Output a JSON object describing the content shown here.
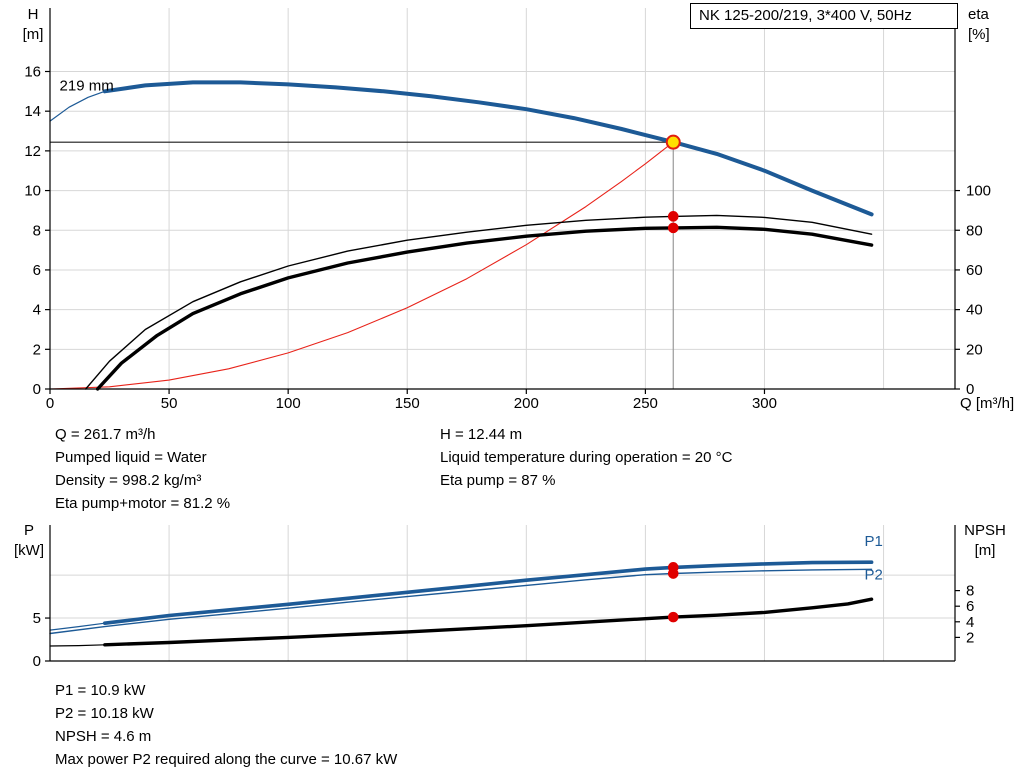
{
  "title_box": {
    "text": "NK 125-200/219, 3*400 V, 50Hz"
  },
  "annotations_top": {
    "col1": [
      "Q = 261.7 m³/h",
      "Pumped liquid = Water",
      "Density = 998.2 kg/m³",
      "Eta pump+motor = 81.2 %"
    ],
    "col2": [
      "H = 12.44 m",
      "Liquid temperature during operation = 20 °C",
      "Eta pump = 87 %"
    ]
  },
  "annotations_bottom": [
    "P1 = 10.9 kW",
    "P2 = 10.18 kW",
    "NPSH = 4.6 m",
    "Max power P2 required along the curve = 10.67 kW"
  ],
  "colors": {
    "curve_blue": "#1d5a96",
    "curve_black": "#000000",
    "system_red": "#e8231a",
    "marker_red": "#e00000",
    "duty_yellow": "#ffdf00",
    "grid": "#d7d7d7",
    "axis": "#000000"
  },
  "chart_data": [
    {
      "type": "line",
      "name": "head-efficiency-chart",
      "x_axis": {
        "label": "Q [m³/h]",
        "range": [
          0,
          380
        ],
        "ticks": [
          0,
          50,
          100,
          150,
          200,
          250,
          300
        ],
        "grid_ticks": [
          50,
          100,
          150,
          200,
          250,
          300,
          350
        ]
      },
      "y_left": {
        "label_line1": "H",
        "label_line2": "[m]",
        "range": [
          0,
          19.2
        ],
        "ticks": [
          0,
          2,
          4,
          6,
          8,
          10,
          12,
          14,
          16
        ]
      },
      "y_right": {
        "label_line1": "eta",
        "label_line2": "[%]",
        "range": [
          0,
          192
        ],
        "ticks": [
          0,
          20,
          40,
          60,
          80,
          100
        ]
      },
      "impeller_label": "219 mm",
      "duty_point": {
        "q": 261.7,
        "h": 12.44
      },
      "series": [
        {
          "name": "system-curve",
          "axis": "left",
          "color": "#e8231a",
          "width": 1.1,
          "points": [
            [
              0,
              0
            ],
            [
              25,
              0.11
            ],
            [
              50,
              0.45
            ],
            [
              75,
              1.02
            ],
            [
              100,
              1.82
            ],
            [
              125,
              2.84
            ],
            [
              150,
              4.09
            ],
            [
              175,
              5.56
            ],
            [
              200,
              7.27
            ],
            [
              225,
              9.19
            ],
            [
              240,
              10.46
            ],
            [
              250,
              11.35
            ],
            [
              261.7,
              12.44
            ]
          ]
        },
        {
          "name": "eta-pump-curve",
          "axis": "right",
          "color": "#000000",
          "width": 1.4,
          "points": [
            [
              15,
              0
            ],
            [
              25,
              14
            ],
            [
              40,
              30
            ],
            [
              60,
              44
            ],
            [
              80,
              54
            ],
            [
              100,
              62
            ],
            [
              125,
              69.5
            ],
            [
              150,
              75
            ],
            [
              175,
              79
            ],
            [
              200,
              82.5
            ],
            [
              225,
              85
            ],
            [
              250,
              86.6
            ],
            [
              261.7,
              87
            ],
            [
              280,
              87.5
            ],
            [
              300,
              86.5
            ],
            [
              320,
              84
            ],
            [
              345,
              78
            ]
          ]
        },
        {
          "name": "eta-pump-motor-curve",
          "axis": "right",
          "color": "#000000",
          "width": 3.4,
          "points": [
            [
              20,
              0
            ],
            [
              30,
              13
            ],
            [
              45,
              27
            ],
            [
              60,
              38
            ],
            [
              80,
              48
            ],
            [
              100,
              56
            ],
            [
              125,
              63.5
            ],
            [
              150,
              69
            ],
            [
              175,
              73.5
            ],
            [
              200,
              77
            ],
            [
              225,
              79.5
            ],
            [
              250,
              81
            ],
            [
              261.7,
              81.2
            ],
            [
              280,
              81.5
            ],
            [
              300,
              80.5
            ],
            [
              320,
              78
            ],
            [
              345,
              72.5
            ]
          ]
        },
        {
          "name": "head-curve-leadin",
          "axis": "left",
          "color": "#1d5a96",
          "width": 1.2,
          "points": [
            [
              0,
              13.5
            ],
            [
              8,
              14.2
            ],
            [
              16,
              14.7
            ],
            [
              23,
              15.0
            ]
          ]
        },
        {
          "name": "head-curve-219mm",
          "axis": "left",
          "color": "#1d5a96",
          "width": 4,
          "points": [
            [
              23,
              15.0
            ],
            [
              40,
              15.3
            ],
            [
              60,
              15.45
            ],
            [
              80,
              15.45
            ],
            [
              100,
              15.35
            ],
            [
              120,
              15.2
            ],
            [
              140,
              15.0
            ],
            [
              160,
              14.75
            ],
            [
              180,
              14.45
            ],
            [
              200,
              14.1
            ],
            [
              220,
              13.65
            ],
            [
              240,
              13.1
            ],
            [
              261.7,
              12.44
            ],
            [
              280,
              11.85
            ],
            [
              300,
              11.0
            ],
            [
              320,
              10.0
            ],
            [
              345,
              8.8
            ]
          ]
        }
      ],
      "markers": [
        {
          "name": "duty-point-marker",
          "axis": "left",
          "q": 261.7,
          "value": 12.44,
          "r": 6.5,
          "fill": "#ffdf00",
          "stroke": "#e11e10",
          "stroke_width": 2
        },
        {
          "name": "eta-pump-marker",
          "axis": "right",
          "q": 261.7,
          "value": 87,
          "r": 4.8,
          "fill": "#e00000",
          "stroke": "#e00000",
          "stroke_width": 1
        },
        {
          "name": "eta-pump-motor-marker",
          "axis": "right",
          "q": 261.7,
          "value": 81.2,
          "r": 4.8,
          "fill": "#e00000",
          "stroke": "#e00000",
          "stroke_width": 1
        }
      ]
    },
    {
      "type": "line",
      "name": "power-npsh-chart",
      "x_axis": {
        "label": "",
        "range": [
          0,
          380
        ],
        "ticks": [],
        "grid_ticks": [
          50,
          100,
          150,
          200,
          250,
          300,
          350
        ]
      },
      "y_left": {
        "label_line1": "P",
        "label_line2": "[kW]",
        "range": [
          0,
          14.9
        ],
        "ticks": [
          0,
          5
        ],
        "grid_ticks": [
          5,
          10
        ]
      },
      "y_right": {
        "label_line1": "NPSH",
        "label_line2": "[m]",
        "range": [
          0,
          16.4
        ],
        "ticks": [
          2,
          4,
          6,
          8
        ]
      },
      "series": [
        {
          "name": "npsh-curve-leadin",
          "axis": "right",
          "color": "#000000",
          "width": 1.2,
          "points": [
            [
              0,
              0.9
            ],
            [
              12,
              0.95
            ],
            [
              23,
              1.05
            ]
          ]
        },
        {
          "name": "npsh-curve",
          "axis": "right",
          "color": "#000000",
          "width": 3.4,
          "points": [
            [
              23,
              1.05
            ],
            [
              50,
              1.35
            ],
            [
              100,
              2.0
            ],
            [
              150,
              2.7
            ],
            [
              200,
              3.5
            ],
            [
              230,
              4.05
            ],
            [
              250,
              4.4
            ],
            [
              261.7,
              4.6
            ],
            [
              280,
              4.85
            ],
            [
              300,
              5.2
            ],
            [
              320,
              5.8
            ],
            [
              335,
              6.3
            ],
            [
              345,
              6.9
            ]
          ]
        },
        {
          "name": "p2-curve",
          "axis": "left",
          "color": "#1d5a96",
          "width": 1.4,
          "points": [
            [
              0,
              3.2
            ],
            [
              23,
              4.0
            ],
            [
              50,
              4.85
            ],
            [
              75,
              5.5
            ],
            [
              100,
              6.15
            ],
            [
              125,
              6.85
            ],
            [
              150,
              7.5
            ],
            [
              175,
              8.15
            ],
            [
              200,
              8.8
            ],
            [
              225,
              9.45
            ],
            [
              250,
              10.05
            ],
            [
              261.7,
              10.18
            ],
            [
              280,
              10.35
            ],
            [
              300,
              10.5
            ],
            [
              320,
              10.6
            ],
            [
              345,
              10.67
            ]
          ]
        },
        {
          "name": "p1-curve-leadin",
          "axis": "left",
          "color": "#1d5a96",
          "width": 1.2,
          "points": [
            [
              0,
              3.6
            ],
            [
              12,
              4.0
            ],
            [
              23,
              4.4
            ]
          ]
        },
        {
          "name": "p1-curve",
          "axis": "left",
          "color": "#1d5a96",
          "width": 3.6,
          "points": [
            [
              23,
              4.4
            ],
            [
              50,
              5.3
            ],
            [
              75,
              5.95
            ],
            [
              100,
              6.6
            ],
            [
              125,
              7.3
            ],
            [
              150,
              8.0
            ],
            [
              175,
              8.7
            ],
            [
              200,
              9.4
            ],
            [
              225,
              10.05
            ],
            [
              250,
              10.7
            ],
            [
              261.7,
              10.9
            ],
            [
              280,
              11.1
            ],
            [
              300,
              11.3
            ],
            [
              320,
              11.45
            ],
            [
              345,
              11.5
            ]
          ]
        }
      ],
      "curve_labels": [
        {
          "text": "P1",
          "q": 342,
          "value": 13.4,
          "color": "#1d5a96"
        },
        {
          "text": "P2",
          "q": 342,
          "value": 9.5,
          "color": "#1d5a96"
        }
      ],
      "markers": [
        {
          "name": "p1-marker",
          "axis": "left",
          "q": 261.7,
          "value": 10.9,
          "r": 4.8,
          "fill": "#e00000",
          "stroke": "#e00000",
          "stroke_width": 1
        },
        {
          "name": "p2-marker",
          "axis": "left",
          "q": 261.7,
          "value": 10.18,
          "r": 4.8,
          "fill": "#e00000",
          "stroke": "#e00000",
          "stroke_width": 1
        },
        {
          "name": "npsh-marker",
          "axis": "right",
          "q": 261.7,
          "value": 4.6,
          "r": 4.8,
          "fill": "#e00000",
          "stroke": "#e00000",
          "stroke_width": 1
        }
      ]
    }
  ]
}
